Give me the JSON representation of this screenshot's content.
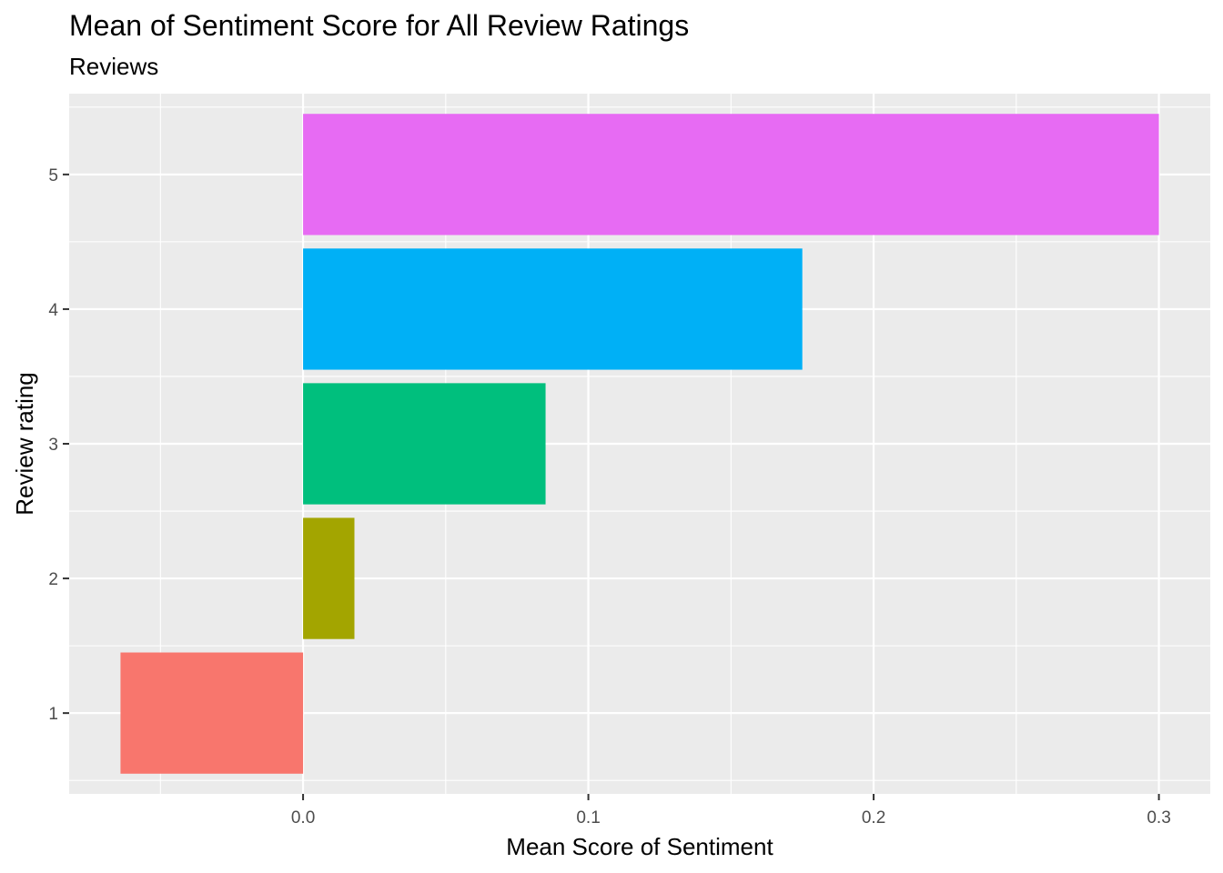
{
  "chart_data": {
    "type": "bar",
    "orientation": "horizontal",
    "title": "Mean of Sentiment Score for All Review Ratings",
    "subtitle": "Reviews",
    "xlabel": "Mean Score of Sentiment",
    "ylabel": "Review rating",
    "categories": [
      "1",
      "2",
      "3",
      "4",
      "5"
    ],
    "values": [
      -0.064,
      0.018,
      0.085,
      0.175,
      0.3
    ],
    "colors": [
      "#F8766D",
      "#A3A500",
      "#00BF7D",
      "#00B0F6",
      "#E76BF3"
    ],
    "xlim": [
      -0.082,
      0.318
    ],
    "x_ticks": [
      0.0,
      0.1,
      0.2,
      0.3
    ],
    "x_tick_labels": [
      "0.0",
      "0.1",
      "0.2",
      "0.3"
    ],
    "x_minor_ticks": [
      -0.05,
      0.05,
      0.15,
      0.25
    ],
    "grid": true,
    "legend": "none",
    "panel_background": "#EBEBEB",
    "grid_color": "#FFFFFF"
  }
}
